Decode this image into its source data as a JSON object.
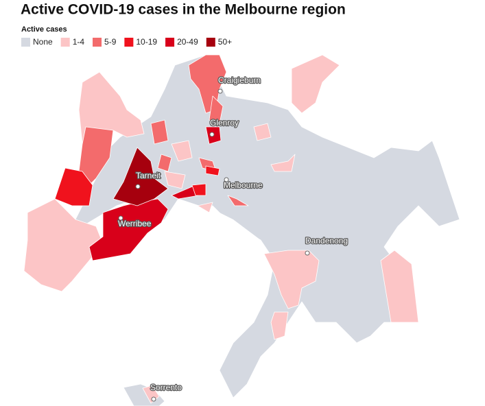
{
  "title": "Active COVID-19 cases in the Melbourne region",
  "legend": {
    "title": "Active cases",
    "items": [
      {
        "label": "None",
        "color": "#d5d9e1"
      },
      {
        "label": "1-4",
        "color": "#fcc5c6"
      },
      {
        "label": "5-9",
        "color": "#f36b6c"
      },
      {
        "label": "10-19",
        "color": "#f0121d"
      },
      {
        "label": "20-49",
        "color": "#d8001a"
      },
      {
        "label": "50+",
        "color": "#a6000e"
      }
    ]
  },
  "places": [
    {
      "label": "Craigieburn"
    },
    {
      "label": "Glenroy"
    },
    {
      "label": "Tarneit"
    },
    {
      "label": "Melbourne"
    },
    {
      "label": "Werribee"
    },
    {
      "label": "Dandenong"
    },
    {
      "label": "Sorrento"
    }
  ]
}
